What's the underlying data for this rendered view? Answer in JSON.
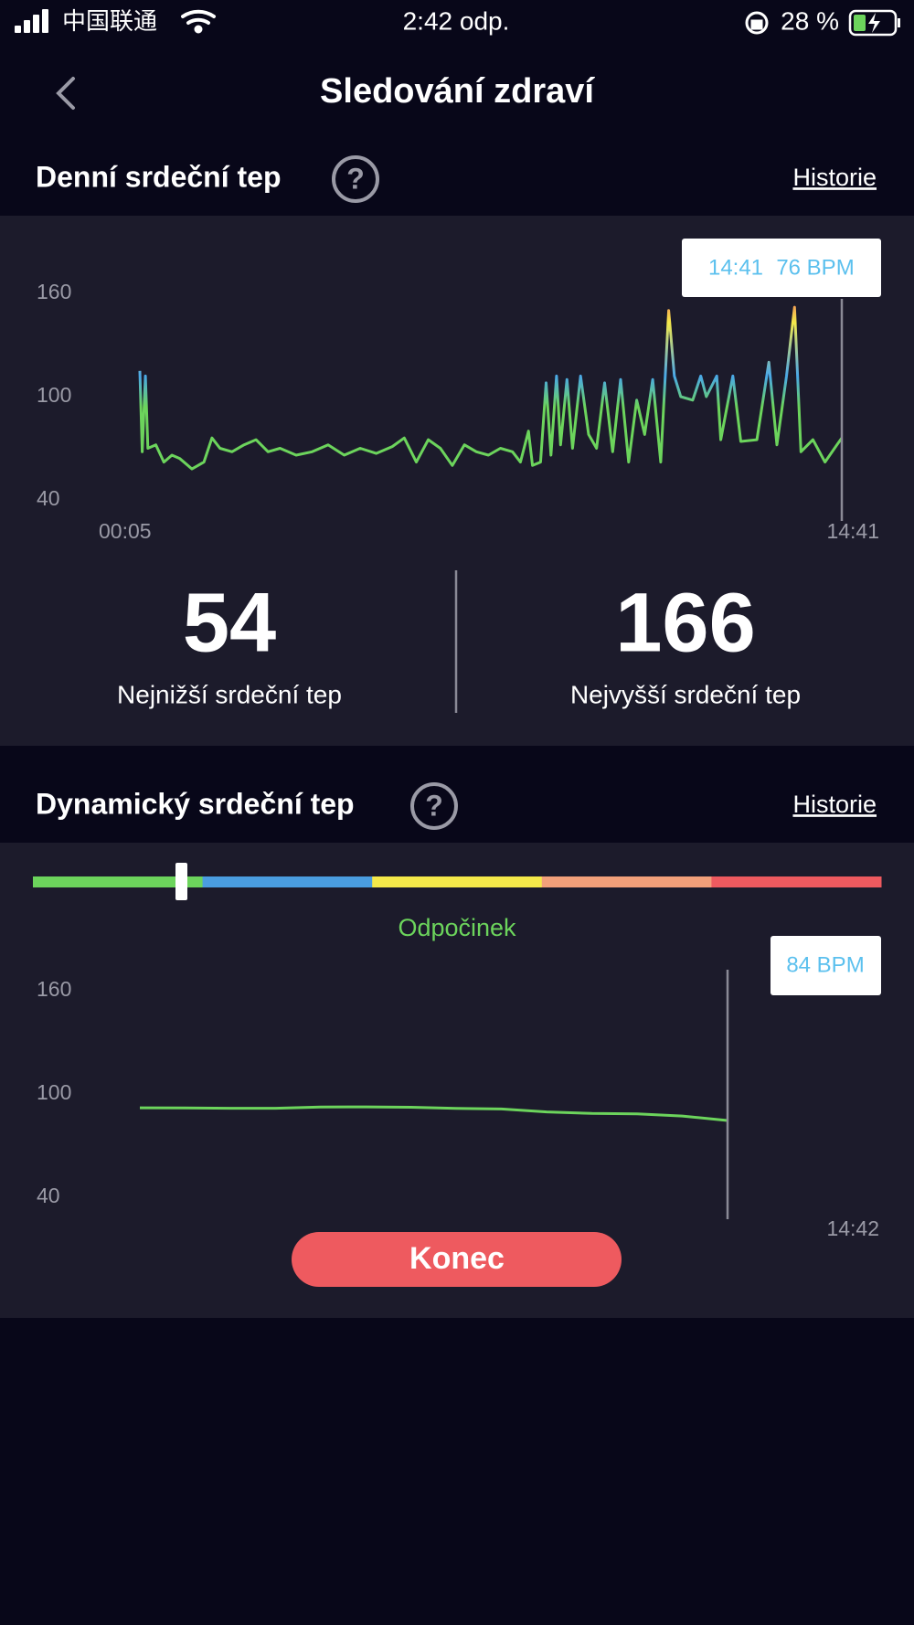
{
  "status_bar": {
    "carrier": "中国联通",
    "time": "2:42 odp.",
    "battery": "28 %"
  },
  "header": {
    "title": "Sledování zdraví"
  },
  "daily": {
    "title": "Denní srdeční tep",
    "link": "Historie",
    "tooltip_time": "14:41",
    "tooltip_value": "76 BPM",
    "lowest": {
      "value": 54,
      "label": "Nejnižší srdeční tep"
    },
    "highest": {
      "value": 166,
      "label": "Nejvyšší srdeční tep"
    }
  },
  "dynamic": {
    "title": "Dynamický srdeční tep",
    "link": "Historie",
    "zone": "Odpočinek",
    "zone_colors": [
      "#6cd45c",
      "#4a9de0",
      "#f5e94a",
      "#f2a07a",
      "#ee5a5f"
    ],
    "tooltip": "84 BPM",
    "button": "Konec",
    "x_label": "14:42"
  },
  "chart_data": [
    {
      "type": "line",
      "x": [
        5,
        8,
        12,
        15,
        25,
        35,
        45,
        55,
        70,
        85,
        95,
        105,
        120,
        135,
        150,
        165,
        180,
        200,
        220,
        240,
        260,
        280,
        300,
        320,
        335,
        350,
        365,
        380,
        395,
        410,
        425,
        440,
        455,
        470,
        480,
        490,
        495,
        505,
        512,
        518,
        525,
        530,
        538,
        545,
        555,
        565,
        575,
        585,
        595,
        605,
        615,
        625,
        635,
        645,
        655,
        665,
        672,
        680,
        695,
        705,
        712,
        725,
        730,
        745,
        755,
        775,
        790,
        800,
        812,
        822,
        830,
        845,
        860,
        875,
        881
      ],
      "values": [
        115,
        68,
        112,
        70,
        72,
        62,
        66,
        64,
        58,
        62,
        76,
        70,
        68,
        72,
        75,
        68,
        70,
        66,
        68,
        72,
        66,
        70,
        67,
        71,
        76,
        62,
        75,
        70,
        60,
        72,
        68,
        66,
        70,
        68,
        62,
        80,
        60,
        62,
        108,
        66,
        112,
        72,
        110,
        70,
        112,
        78,
        70,
        108,
        68,
        110,
        62,
        98,
        78,
        110,
        62,
        150,
        112,
        100,
        98,
        112,
        100,
        112,
        75,
        112,
        74,
        75,
        120,
        72,
        112,
        152,
        68,
        75,
        62,
        72,
        76
      ],
      "xlim": [
        5,
        881
      ],
      "xticks": [
        {
          "value": 5,
          "label": "00:05"
        },
        {
          "value": 881,
          "label": "14:41"
        }
      ],
      "ylim": [
        40,
        160
      ],
      "yticks": [
        40,
        100,
        160
      ],
      "colors": [
        "#6cd45c",
        "#4aa8e8",
        "#f5e94a",
        "#f06a5a"
      ]
    },
    {
      "type": "line",
      "values": [
        92,
        91.9,
        91.7,
        91.7,
        92.4,
        92.5,
        92.3,
        91.6,
        91.3,
        89.6,
        88.7,
        88.4,
        87.2,
        84.6
      ],
      "ylim": [
        40,
        160
      ],
      "yticks": [
        40,
        100,
        160
      ],
      "color": "#6cd45c"
    }
  ]
}
